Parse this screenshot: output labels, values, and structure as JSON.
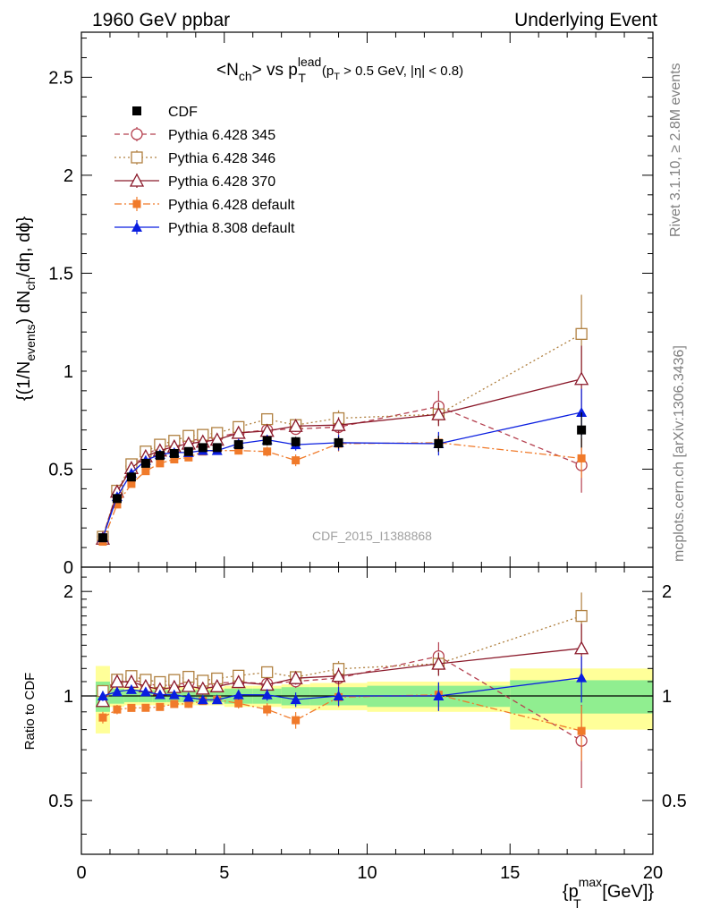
{
  "header": {
    "left": "1960 GeV ppbar",
    "right": "Underlying Event"
  },
  "side": {
    "rivet": "Rivet 3.1.10, ≥ 2.8M events",
    "mcplots": "mcplots.cern.ch [arXiv:1306.3436]"
  },
  "watermark": "CDF_2015_I1388868",
  "colors": {
    "cdf": "#000000",
    "p345": "#b5404f",
    "p346": "#b08040",
    "p370": "#8b1a2b",
    "pdefault": "#f07a2a",
    "p8": "#0a1ee0",
    "band_inner": "#90ee90",
    "band_outer": "#ffff99"
  },
  "chart_data": {
    "type": "scatter",
    "title_parts": {
      "nch": "<N",
      "nch_sub": "ch",
      "vs": "> vs p",
      "pt_sup": "lead",
      "pt_sub": "T",
      "cut_open": "(p",
      "cut_sub": "T",
      "cut_rest": " > 0.5 GeV, |η| < 0.8)"
    },
    "ylabel_parts": {
      "a": "{(1/N",
      "a_sub": "events",
      "b": ") dN",
      "b_sub": "ch",
      "c": "/dη, dϕ}"
    },
    "xlabel_parts": {
      "a": "{p",
      "a_sup": "max",
      "a_sub": "T",
      "b": " [GeV]}"
    },
    "ratio_ylabel": "Ratio to CDF",
    "xlim": [
      0,
      20
    ],
    "ylim": [
      0,
      2.73
    ],
    "ratio_ylim": [
      0.35,
      2.35
    ],
    "ratio_log": true,
    "x_ticks": [
      "0",
      "5",
      "10",
      "15",
      "20"
    ],
    "y_ticks": [
      "0",
      "0.5",
      "1",
      "1.5",
      "2",
      "2.5"
    ],
    "ratio_ticks": [
      "0.5",
      "1",
      "2"
    ],
    "legend_position": "top-left",
    "bins": [
      [
        0.5,
        1
      ],
      [
        1,
        1.5
      ],
      [
        1.5,
        2
      ],
      [
        2,
        2.5
      ],
      [
        2.5,
        3
      ],
      [
        3,
        3.5
      ],
      [
        3.5,
        4
      ],
      [
        4,
        4.5
      ],
      [
        4.5,
        5
      ],
      [
        5,
        6
      ],
      [
        6,
        7
      ],
      [
        7,
        8
      ],
      [
        8,
        10
      ],
      [
        10,
        15
      ],
      [
        15,
        20
      ]
    ],
    "series": [
      {
        "name": "CDF",
        "key": "cdf",
        "x": [
          0.75,
          1.25,
          1.75,
          2.25,
          2.75,
          3.25,
          3.75,
          4.25,
          4.75,
          5.5,
          6.5,
          7.5,
          9,
          12.5,
          17.5
        ],
        "y": [
          0.15,
          0.35,
          0.46,
          0.53,
          0.57,
          0.58,
          0.59,
          0.61,
          0.61,
          0.625,
          0.645,
          0.64,
          0.635,
          0.63,
          0.7
        ],
        "err": [
          0.01,
          0.01,
          0.015,
          0.015,
          0.015,
          0.015,
          0.015,
          0.02,
          0.02,
          0.02,
          0.025,
          0.025,
          0.03,
          0.04,
          0.09
        ],
        "band_inner": [
          0.1,
          0.05,
          0.04,
          0.04,
          0.04,
          0.04,
          0.04,
          0.04,
          0.04,
          0.05,
          0.05,
          0.06,
          0.06,
          0.07,
          0.11
        ],
        "band_outer": [
          0.22,
          0.07,
          0.06,
          0.06,
          0.06,
          0.06,
          0.06,
          0.06,
          0.06,
          0.07,
          0.07,
          0.08,
          0.09,
          0.1,
          0.2
        ]
      },
      {
        "name": "Pythia 6.428 345",
        "key": "p345",
        "marker": "circle-open",
        "dash": "6,4",
        "x": [
          0.75,
          1.25,
          1.75,
          2.25,
          2.75,
          3.25,
          3.75,
          4.25,
          4.75,
          5.5,
          6.5,
          7.5,
          9,
          12.5,
          17.5
        ],
        "y": [
          0.155,
          0.385,
          0.515,
          0.575,
          0.61,
          0.625,
          0.645,
          0.655,
          0.665,
          0.685,
          0.7,
          0.705,
          0.715,
          0.82,
          0.52
        ],
        "err": [
          0.005,
          0.01,
          0.01,
          0.01,
          0.01,
          0.01,
          0.015,
          0.015,
          0.015,
          0.02,
          0.025,
          0.03,
          0.04,
          0.08,
          0.14
        ]
      },
      {
        "name": "Pythia 6.428 346",
        "key": "p346",
        "marker": "square-open",
        "dash": "2,3",
        "x": [
          0.75,
          1.25,
          1.75,
          2.25,
          2.75,
          3.25,
          3.75,
          4.25,
          4.75,
          5.5,
          6.5,
          7.5,
          9,
          12.5,
          17.5
        ],
        "y": [
          0.155,
          0.39,
          0.525,
          0.59,
          0.625,
          0.645,
          0.67,
          0.675,
          0.685,
          0.715,
          0.755,
          0.725,
          0.76,
          0.78,
          1.19
        ],
        "err": [
          0.005,
          0.01,
          0.01,
          0.01,
          0.01,
          0.01,
          0.015,
          0.015,
          0.015,
          0.02,
          0.025,
          0.03,
          0.04,
          0.06,
          0.2
        ]
      },
      {
        "name": "Pythia 6.428 370",
        "key": "p370",
        "marker": "triangle-open",
        "dash": "",
        "x": [
          0.75,
          1.25,
          1.75,
          2.25,
          2.75,
          3.25,
          3.75,
          4.25,
          4.75,
          5.5,
          6.5,
          7.5,
          9,
          12.5,
          17.5
        ],
        "y": [
          0.145,
          0.385,
          0.505,
          0.565,
          0.595,
          0.615,
          0.63,
          0.64,
          0.65,
          0.685,
          0.695,
          0.72,
          0.725,
          0.78,
          0.96
        ],
        "err": [
          0.005,
          0.01,
          0.01,
          0.01,
          0.01,
          0.01,
          0.015,
          0.015,
          0.015,
          0.02,
          0.025,
          0.03,
          0.04,
          0.06,
          0.17
        ]
      },
      {
        "name": "Pythia 6.428 default",
        "key": "pdefault",
        "marker": "square-filled",
        "dash": "8,3,2,3",
        "x": [
          0.75,
          1.25,
          1.75,
          2.25,
          2.75,
          3.25,
          3.75,
          4.25,
          4.75,
          5.5,
          6.5,
          7.5,
          9,
          12.5,
          17.5
        ],
        "y": [
          0.13,
          0.32,
          0.425,
          0.49,
          0.53,
          0.55,
          0.56,
          0.59,
          0.595,
          0.595,
          0.59,
          0.545,
          0.63,
          0.635,
          0.555
        ],
        "err": [
          0.005,
          0.01,
          0.01,
          0.01,
          0.01,
          0.01,
          0.015,
          0.015,
          0.015,
          0.02,
          0.025,
          0.03,
          0.04,
          0.05,
          0.1
        ]
      },
      {
        "name": "Pythia 8.308 default",
        "key": "p8",
        "marker": "triangle-filled",
        "dash": "",
        "x": [
          0.75,
          1.25,
          1.75,
          2.25,
          2.75,
          3.25,
          3.75,
          4.25,
          4.75,
          5.5,
          6.5,
          7.5,
          9,
          12.5,
          17.5
        ],
        "y": [
          0.15,
          0.36,
          0.48,
          0.545,
          0.575,
          0.585,
          0.585,
          0.595,
          0.595,
          0.63,
          0.65,
          0.625,
          0.635,
          0.63,
          0.79
        ],
        "err": [
          0.005,
          0.01,
          0.01,
          0.01,
          0.01,
          0.01,
          0.015,
          0.015,
          0.015,
          0.02,
          0.025,
          0.03,
          0.04,
          0.06,
          0.12
        ]
      }
    ]
  }
}
